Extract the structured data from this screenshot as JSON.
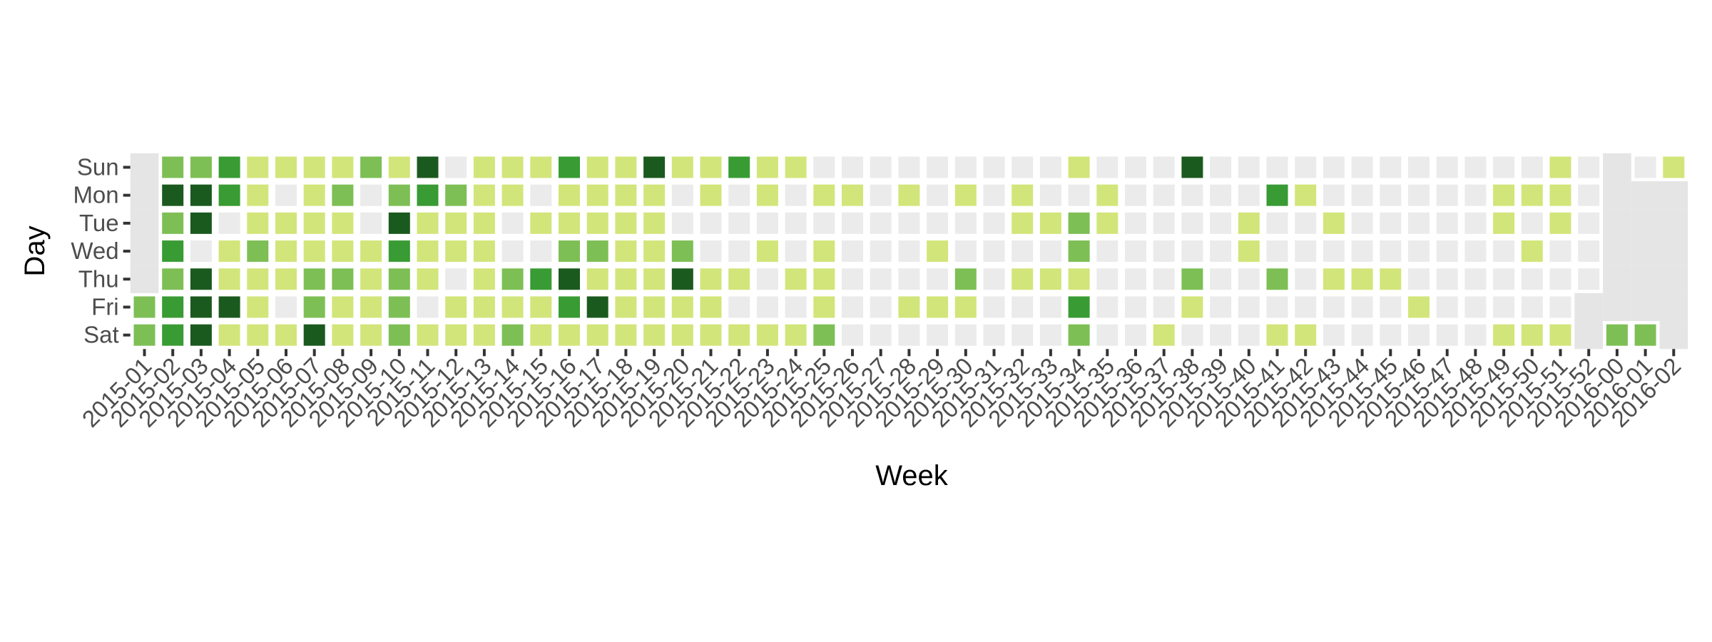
{
  "chart_data": {
    "type": "heatmap",
    "xlabel": "Week",
    "ylabel": "Day",
    "weeks": [
      "2015-01",
      "2015-02",
      "2015-03",
      "2015-04",
      "2015-05",
      "2015-06",
      "2015-07",
      "2015-08",
      "2015-09",
      "2015-10",
      "2015-11",
      "2015-12",
      "2015-13",
      "2015-14",
      "2015-15",
      "2015-16",
      "2015-17",
      "2015-18",
      "2015-19",
      "2015-20",
      "2015-21",
      "2015-22",
      "2015-23",
      "2015-24",
      "2015-25",
      "2015-26",
      "2015-27",
      "2015-28",
      "2015-29",
      "2015-30",
      "2015-31",
      "2015-32",
      "2015-33",
      "2015-34",
      "2015-35",
      "2015-36",
      "2015-37",
      "2015-38",
      "2015-39",
      "2015-40",
      "2015-41",
      "2015-42",
      "2015-43",
      "2015-44",
      "2015-45",
      "2015-46",
      "2015-47",
      "2015-48",
      "2015-49",
      "2015-50",
      "2015-51",
      "2015-52",
      "2016-00",
      "2016-01",
      "2016-02"
    ],
    "days": [
      "Sun",
      "Mon",
      "Tue",
      "Wed",
      "Thu",
      "Fri",
      "Sat"
    ],
    "levels": [
      0,
      1,
      2,
      3,
      4
    ],
    "level_colors": [
      "#ebebeb",
      "#d2e57a",
      "#7dbf55",
      "#399b33",
      "#1b5a1e"
    ],
    "missing_color": "#e5e5e5",
    "grid": false,
    "legend": "none",
    "values": {
      "Sun": [
        null,
        2,
        2,
        3,
        1,
        1,
        1,
        1,
        2,
        1,
        4,
        0,
        1,
        1,
        1,
        3,
        1,
        1,
        4,
        1,
        1,
        3,
        1,
        1,
        0,
        0,
        0,
        0,
        0,
        0,
        0,
        0,
        0,
        1,
        0,
        0,
        0,
        4,
        0,
        0,
        0,
        0,
        0,
        0,
        0,
        0,
        0,
        0,
        0,
        0,
        1,
        0,
        null,
        0,
        1
      ],
      "Mon": [
        null,
        4,
        4,
        3,
        1,
        0,
        1,
        2,
        0,
        2,
        3,
        2,
        1,
        1,
        0,
        1,
        1,
        1,
        1,
        0,
        1,
        0,
        1,
        0,
        1,
        1,
        0,
        1,
        0,
        1,
        0,
        1,
        0,
        0,
        1,
        0,
        0,
        0,
        0,
        0,
        3,
        1,
        0,
        0,
        0,
        0,
        0,
        0,
        1,
        1,
        1,
        0,
        null,
        null,
        null
      ],
      "Tue": [
        null,
        2,
        4,
        0,
        1,
        1,
        1,
        1,
        0,
        4,
        1,
        1,
        1,
        0,
        1,
        1,
        1,
        1,
        1,
        0,
        0,
        0,
        0,
        0,
        0,
        0,
        0,
        0,
        0,
        0,
        0,
        1,
        1,
        2,
        1,
        0,
        0,
        0,
        0,
        1,
        0,
        0,
        1,
        0,
        0,
        0,
        0,
        0,
        1,
        0,
        1,
        0,
        null,
        null,
        null
      ],
      "Wed": [
        null,
        3,
        0,
        1,
        2,
        1,
        1,
        1,
        1,
        3,
        1,
        1,
        1,
        0,
        0,
        2,
        2,
        1,
        1,
        2,
        0,
        0,
        1,
        0,
        1,
        0,
        0,
        0,
        1,
        0,
        0,
        0,
        0,
        2,
        0,
        0,
        0,
        0,
        0,
        1,
        0,
        0,
        0,
        0,
        0,
        0,
        0,
        0,
        0,
        1,
        0,
        0,
        null,
        null,
        null
      ],
      "Thu": [
        null,
        2,
        4,
        1,
        1,
        1,
        2,
        2,
        1,
        2,
        1,
        0,
        1,
        2,
        3,
        4,
        1,
        1,
        1,
        4,
        1,
        1,
        0,
        1,
        1,
        0,
        0,
        0,
        0,
        2,
        0,
        1,
        1,
        1,
        0,
        0,
        0,
        2,
        0,
        0,
        2,
        0,
        1,
        1,
        1,
        0,
        0,
        0,
        0,
        0,
        0,
        0,
        null,
        null,
        null
      ],
      "Fri": [
        2,
        3,
        4,
        4,
        1,
        0,
        2,
        1,
        1,
        2,
        0,
        1,
        1,
        1,
        1,
        3,
        4,
        1,
        1,
        1,
        1,
        0,
        0,
        0,
        1,
        0,
        0,
        1,
        1,
        1,
        0,
        0,
        0,
        3,
        0,
        0,
        0,
        1,
        0,
        0,
        0,
        0,
        0,
        0,
        0,
        1,
        0,
        0,
        0,
        0,
        0,
        null,
        null,
        null,
        null
      ],
      "Sat": [
        2,
        3,
        4,
        1,
        1,
        1,
        4,
        1,
        1,
        2,
        1,
        1,
        1,
        2,
        1,
        1,
        1,
        1,
        1,
        1,
        1,
        1,
        1,
        1,
        2,
        0,
        0,
        0,
        0,
        0,
        0,
        0,
        0,
        2,
        0,
        0,
        1,
        0,
        0,
        0,
        1,
        1,
        0,
        0,
        0,
        0,
        0,
        0,
        1,
        1,
        1,
        null,
        2,
        2,
        null
      ]
    }
  }
}
